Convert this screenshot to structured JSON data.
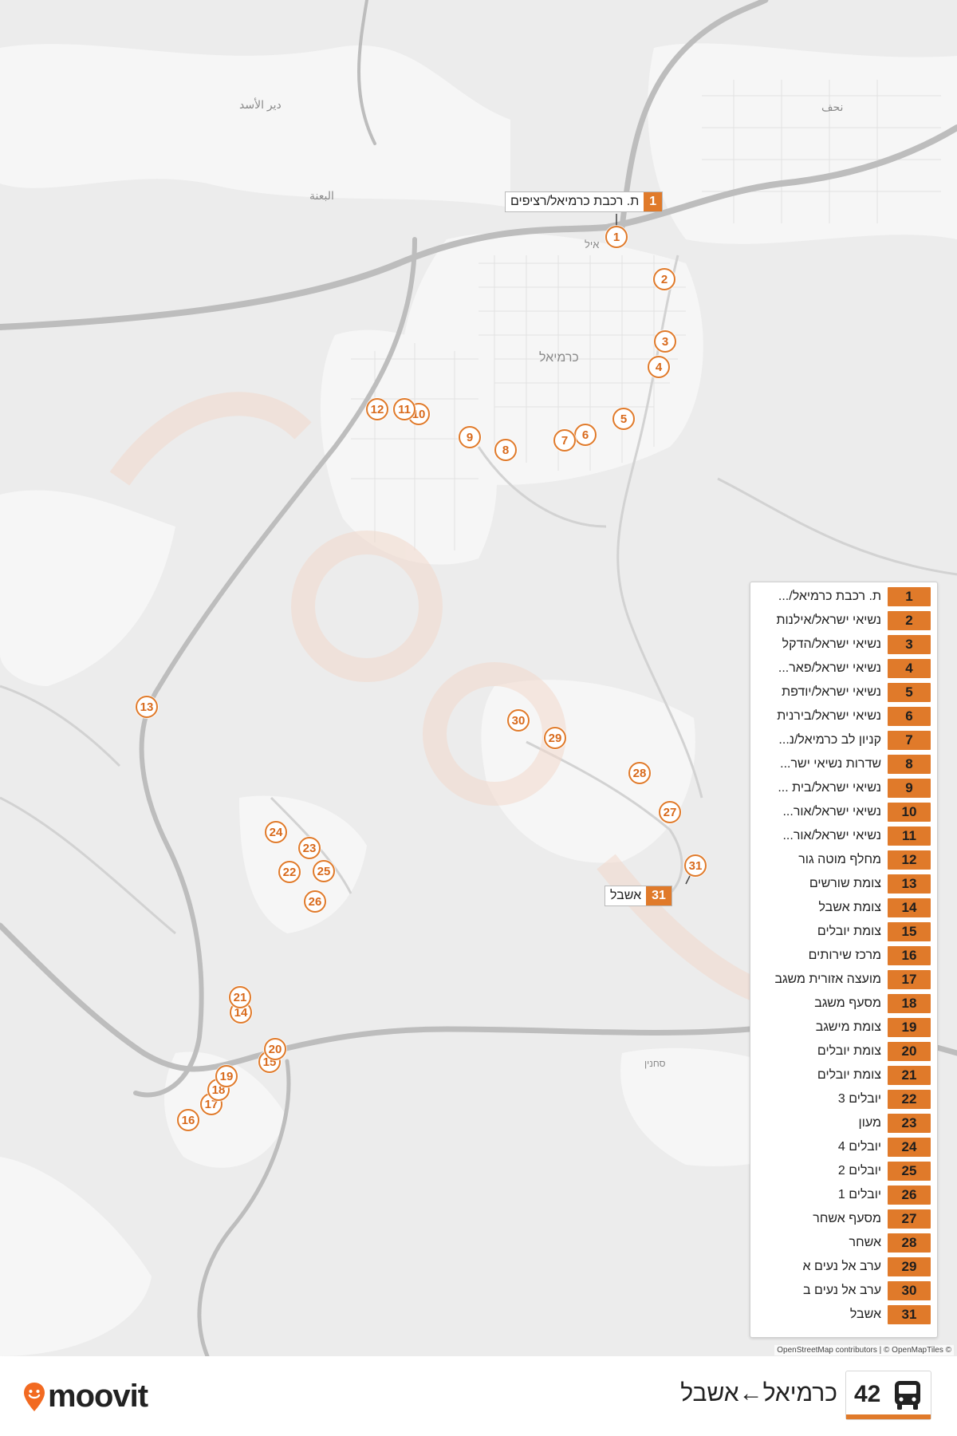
{
  "map": {
    "place_labels": [
      {
        "text": "دير الأسد",
        "name": "label-deir-al-asad"
      },
      {
        "text": "البعنة",
        "name": "label-al-bi'na"
      },
      {
        "text": "نحف",
        "name": "label-nahf"
      },
      {
        "text": "כרמיאל",
        "name": "label-karmiel"
      },
      {
        "text": "סחנין",
        "name": "label-sakhnin"
      },
      {
        "text": "איל",
        "name": "label-karmiel-partial"
      }
    ],
    "stops": [
      {
        "n": "1"
      },
      {
        "n": "2"
      },
      {
        "n": "3"
      },
      {
        "n": "4"
      },
      {
        "n": "5"
      },
      {
        "n": "6"
      },
      {
        "n": "7"
      },
      {
        "n": "8"
      },
      {
        "n": "9"
      },
      {
        "n": "10"
      },
      {
        "n": "11"
      },
      {
        "n": "12"
      },
      {
        "n": "13"
      },
      {
        "n": "14"
      },
      {
        "n": "15"
      },
      {
        "n": "16"
      },
      {
        "n": "17"
      },
      {
        "n": "18"
      },
      {
        "n": "19"
      },
      {
        "n": "20"
      },
      {
        "n": "21"
      },
      {
        "n": "22"
      },
      {
        "n": "23"
      },
      {
        "n": "24"
      },
      {
        "n": "25"
      },
      {
        "n": "26"
      },
      {
        "n": "27"
      },
      {
        "n": "28"
      },
      {
        "n": "29"
      },
      {
        "n": "30"
      },
      {
        "n": "31"
      }
    ],
    "start_callout": {
      "num": "1",
      "name": "ת. רכבת כרמיאל/רציפים"
    },
    "end_callout": {
      "num": "31",
      "name": "אשבל"
    }
  },
  "legend": {
    "items": [
      {
        "num": "1",
        "name": "ת. רכבת כרמיאל/..."
      },
      {
        "num": "2",
        "name": "נשיאי ישראל/אילנות"
      },
      {
        "num": "3",
        "name": "נשיאי ישראל/הדקל"
      },
      {
        "num": "4",
        "name": "נשיאי ישראל/פאר..."
      },
      {
        "num": "5",
        "name": "נשיאי ישראל/יודפת"
      },
      {
        "num": "6",
        "name": "נשיאי ישראל/בירנית"
      },
      {
        "num": "7",
        "name": "קניון לב כרמיאל/נ..."
      },
      {
        "num": "8",
        "name": "שדרות נשיאי ישר..."
      },
      {
        "num": "9",
        "name": "נשיאי ישראל/בית ..."
      },
      {
        "num": "10",
        "name": "נשיאי ישראל/אור..."
      },
      {
        "num": "11",
        "name": "נשיאי ישראל/אור..."
      },
      {
        "num": "12",
        "name": "מחלף מוטה גור"
      },
      {
        "num": "13",
        "name": "צומת שורשים"
      },
      {
        "num": "14",
        "name": "צומת אשבל"
      },
      {
        "num": "15",
        "name": "צומת יובלים"
      },
      {
        "num": "16",
        "name": "מרכז שירותים"
      },
      {
        "num": "17",
        "name": "מועצה אזורית משגב"
      },
      {
        "num": "18",
        "name": "מסעף משגב"
      },
      {
        "num": "19",
        "name": "צומת מישגב"
      },
      {
        "num": "20",
        "name": "צומת יובלים"
      },
      {
        "num": "21",
        "name": "צומת יובלים"
      },
      {
        "num": "22",
        "name": "יובלים 3"
      },
      {
        "num": "23",
        "name": "מעון"
      },
      {
        "num": "24",
        "name": "יובלים 4"
      },
      {
        "num": "25",
        "name": "יובלים 2"
      },
      {
        "num": "26",
        "name": "יובלים 1"
      },
      {
        "num": "27",
        "name": "מסעף אשחר"
      },
      {
        "num": "28",
        "name": "אשחר"
      },
      {
        "num": "29",
        "name": "ערב אל נעים א"
      },
      {
        "num": "30",
        "name": "ערב אל נעים ב"
      },
      {
        "num": "31",
        "name": "אשבל"
      }
    ]
  },
  "attribution": "OpenStreetMap contributors | © OpenMapTiles ©",
  "footer": {
    "brand": "moovit",
    "route_number": "42",
    "route_title": "כרמיאל←אשבל",
    "bus_icon": "bus-icon",
    "logo_icon": "moovit-pin-icon"
  },
  "colors": {
    "accent": "#e07a2a",
    "map_bg": "#ececec",
    "road": "#bcbcbc",
    "urban": "#f7f7f7"
  }
}
